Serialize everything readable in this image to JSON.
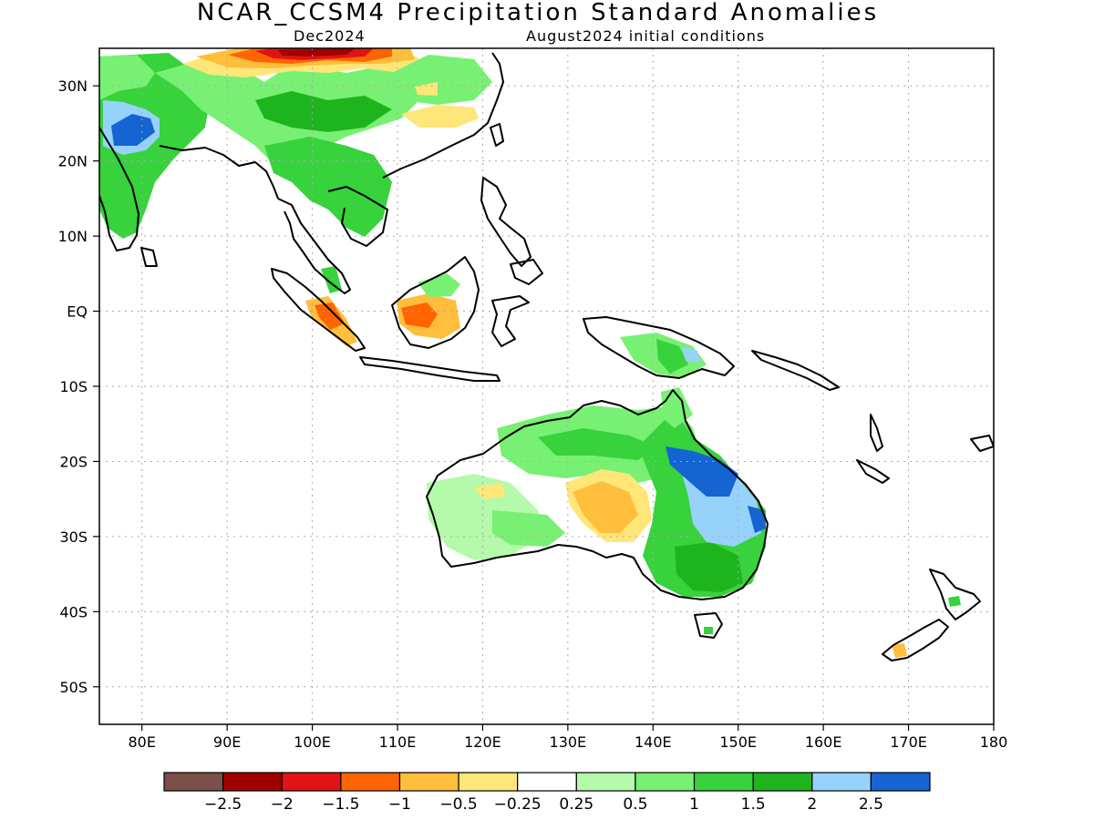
{
  "title": "NCAR_CCSM4 Precipitation Standard Anomalies",
  "target_month": "Dec2024",
  "init": "August2024 initial conditions",
  "lat_labels": [
    "30N",
    "20N",
    "10N",
    "EQ",
    "10S",
    "20S",
    "30S",
    "40S",
    "50S"
  ],
  "lon_labels": [
    "80E",
    "90E",
    "100E",
    "110E",
    "120E",
    "130E",
    "140E",
    "150E",
    "160E",
    "170E",
    "180"
  ],
  "colorbar": {
    "colors": [
      "#7a5048",
      "#a00000",
      "#e01414",
      "#ff6400",
      "#ffbe3c",
      "#ffe678",
      "#ffffff",
      "#b4faaa",
      "#78f073",
      "#37d23c",
      "#1eb41e",
      "#96d2fa",
      "#1464d2"
    ],
    "labels": [
      "−2.5",
      "−2",
      "−1.5",
      "−1",
      "−0.5",
      "−0.25",
      "0.25",
      "0.5",
      "1",
      "1.5",
      "2",
      "2.5"
    ]
  }
}
